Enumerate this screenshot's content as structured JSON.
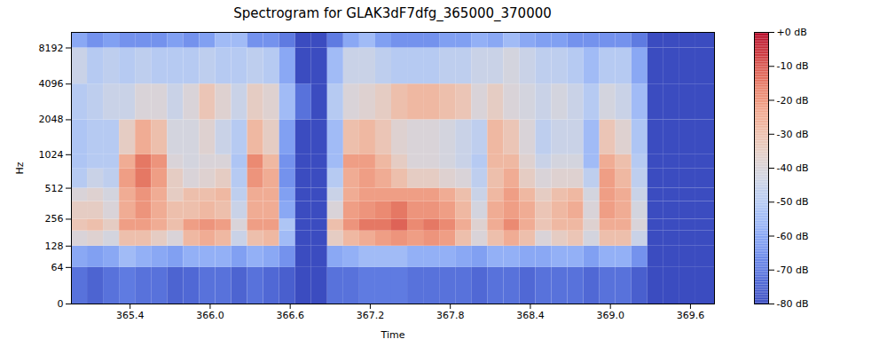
{
  "chart_data": {
    "type": "heatmap",
    "title": "Spectrogram for GLAK3dF7dfg_365000_370000",
    "x_label": "Time",
    "y_label": "Hz",
    "log": "y",
    "xlim": [
      364.96,
      369.78
    ],
    "xticks": [
      365.4,
      {
        "value": 366,
        "label": "366.0"
      },
      366.6,
      367.2,
      367.8,
      368.4,
      {
        "value": 369,
        "label": "369.0"
      },
      369.6
    ],
    "ylim": [
      0,
      11025
    ],
    "yticks": [
      0,
      64,
      128,
      256,
      512,
      1024,
      2048,
      4096,
      8192
    ],
    "time_edges": [
      364.96,
      365.08,
      365.2,
      365.32,
      365.44,
      365.56,
      365.68,
      365.8,
      365.92,
      366.04,
      366.16,
      366.28,
      366.4,
      366.52,
      366.64,
      366.76,
      366.88,
      367.0,
      367.12,
      367.24,
      367.36,
      367.48,
      367.6,
      367.72,
      367.84,
      367.96,
      368.08,
      368.2,
      368.32,
      368.44,
      368.56,
      368.68,
      368.8,
      368.92,
      369.04,
      369.16,
      369.28,
      369.4,
      369.52,
      369.64,
      369.78
    ],
    "freq_edges": [
      0,
      64,
      128,
      192,
      256,
      384,
      512,
      768,
      1024,
      2048,
      4096,
      8192,
      11025
    ],
    "cells": [
      [
        -72,
        -60,
        -40,
        -32,
        -35,
        -40,
        -50,
        -52,
        -52,
        -50,
        -45,
        -60
      ],
      [
        -75,
        -62,
        -38,
        -30,
        -35,
        -38,
        -45,
        -50,
        -50,
        -48,
        -50,
        -65
      ],
      [
        -72,
        -60,
        -42,
        -35,
        -40,
        -42,
        -48,
        -50,
        -50,
        -45,
        -48,
        -62
      ],
      [
        -70,
        -55,
        -30,
        -22,
        -25,
        -25,
        -22,
        -25,
        -35,
        -45,
        -50,
        -65
      ],
      [
        -72,
        -58,
        -30,
        -22,
        -20,
        -20,
        -15,
        -15,
        -25,
        -40,
        -48,
        -65
      ],
      [
        -72,
        -60,
        -35,
        -25,
        -25,
        -25,
        -22,
        -20,
        -30,
        -40,
        -50,
        -65
      ],
      [
        -75,
        -62,
        -40,
        -30,
        -30,
        -35,
        -35,
        -40,
        -42,
        -45,
        -50,
        -62
      ],
      [
        -74,
        -58,
        -28,
        -22,
        -30,
        -30,
        -40,
        -42,
        -42,
        -40,
        -50,
        -65
      ],
      [
        -72,
        -58,
        -25,
        -20,
        -28,
        -30,
        -38,
        -40,
        -38,
        -32,
        -48,
        -62
      ],
      [
        -72,
        -58,
        -28,
        -22,
        -30,
        -28,
        -35,
        -40,
        -45,
        -38,
        -50,
        -55
      ],
      [
        -75,
        -62,
        -45,
        -40,
        -45,
        -48,
        -50,
        -52,
        -50,
        -45,
        -50,
        -55
      ],
      [
        -72,
        -58,
        -30,
        -22,
        -25,
        -25,
        -20,
        -18,
        -28,
        -35,
        -48,
        -65
      ],
      [
        -74,
        -60,
        -28,
        -22,
        -25,
        -25,
        -25,
        -28,
        -35,
        -38,
        -50,
        -65
      ],
      [
        -76,
        -65,
        -55,
        -52,
        -60,
        -62,
        -65,
        -65,
        -62,
        -55,
        -60,
        -70
      ],
      [
        -80,
        -80,
        -80,
        -80,
        -80,
        -80,
        -80,
        -80,
        -80,
        -72,
        -80,
        -80
      ],
      [
        -80,
        -80,
        -80,
        -80,
        -80,
        -80,
        -80,
        -80,
        -80,
        -80,
        -80,
        -80
      ],
      [
        -72,
        -60,
        -35,
        -30,
        -40,
        -45,
        -50,
        -55,
        -55,
        -50,
        -55,
        -70
      ],
      [
        -72,
        -58,
        -28,
        -20,
        -22,
        -25,
        -25,
        -22,
        -30,
        -40,
        -45,
        -60
      ],
      [
        -70,
        -55,
        -25,
        -15,
        -20,
        -22,
        -22,
        -22,
        -28,
        -38,
        -45,
        -55
      ],
      [
        -70,
        -55,
        -22,
        -15,
        -18,
        -22,
        -25,
        -28,
        -32,
        -35,
        -48,
        -62
      ],
      [
        -70,
        -55,
        -20,
        -12,
        -15,
        -22,
        -30,
        -35,
        -38,
        -30,
        -50,
        -65
      ],
      [
        -72,
        -58,
        -22,
        -18,
        -20,
        -22,
        -35,
        -40,
        -40,
        -28,
        -50,
        -65
      ],
      [
        -72,
        -58,
        -20,
        -15,
        -20,
        -22,
        -35,
        -40,
        -40,
        -28,
        -50,
        -65
      ],
      [
        -72,
        -58,
        -22,
        -18,
        -22,
        -25,
        -38,
        -42,
        -42,
        -30,
        -48,
        -62
      ],
      [
        -72,
        -60,
        -30,
        -25,
        -28,
        -30,
        -40,
        -45,
        -45,
        -32,
        -48,
        -62
      ],
      [
        -74,
        -62,
        -40,
        -38,
        -42,
        -45,
        -48,
        -50,
        -48,
        -40,
        -45,
        -58
      ],
      [
        -72,
        -58,
        -30,
        -25,
        -25,
        -28,
        -30,
        -28,
        -28,
        -35,
        -45,
        -60
      ],
      [
        -72,
        -58,
        -25,
        -18,
        -22,
        -22,
        -25,
        -28,
        -32,
        -40,
        -42,
        -55
      ],
      [
        -74,
        -60,
        -30,
        -25,
        -25,
        -28,
        -35,
        -38,
        -40,
        -42,
        -45,
        -60
      ],
      [
        -72,
        -60,
        -40,
        -32,
        -32,
        -35,
        -40,
        -45,
        -48,
        -45,
        -48,
        -62
      ],
      [
        -72,
        -58,
        -35,
        -28,
        -28,
        -30,
        -38,
        -42,
        -45,
        -42,
        -48,
        -62
      ],
      [
        -72,
        -58,
        -32,
        -28,
        -25,
        -28,
        -38,
        -42,
        -45,
        -45,
        -50,
        -65
      ],
      [
        -74,
        -62,
        -42,
        -38,
        -40,
        -42,
        -48,
        -55,
        -55,
        -50,
        -55,
        -65
      ],
      [
        -72,
        -58,
        -30,
        -25,
        -22,
        -22,
        -22,
        -25,
        -32,
        -42,
        -50,
        -65
      ],
      [
        -72,
        -58,
        -30,
        -25,
        -25,
        -25,
        -28,
        -30,
        -38,
        -45,
        -50,
        -65
      ],
      [
        -76,
        -65,
        -45,
        -40,
        -42,
        -45,
        -48,
        -50,
        -52,
        -55,
        -60,
        -70
      ],
      [
        -80,
        -80,
        -80,
        -80,
        -80,
        -80,
        -80,
        -80,
        -80,
        -80,
        -80,
        -80
      ],
      [
        -80,
        -80,
        -80,
        -80,
        -80,
        -80,
        -80,
        -80,
        -80,
        -80,
        -80,
        -80
      ],
      [
        -80,
        -80,
        -80,
        -80,
        -80,
        -80,
        -80,
        -80,
        -80,
        -80,
        -80,
        -80
      ],
      [
        -80,
        -80,
        -80,
        -80,
        -80,
        -80,
        -80,
        -80,
        -80,
        -80,
        -80,
        -80
      ]
    ],
    "colorbar": {
      "range": [
        -80,
        0
      ],
      "ticks": [
        {
          "value": 0,
          "label": "+0 dB"
        },
        {
          "value": -10,
          "label": "-10 dB"
        },
        {
          "value": -20,
          "label": "-20 dB"
        },
        {
          "value": -30,
          "label": "-30 dB"
        },
        {
          "value": -40,
          "label": "-40 dB"
        },
        {
          "value": -50,
          "label": "-50 dB"
        },
        {
          "value": -60,
          "label": "-60 dB"
        },
        {
          "value": -70,
          "label": "-70 dB"
        },
        {
          "value": -80,
          "label": "-80 dB"
        }
      ]
    }
  }
}
